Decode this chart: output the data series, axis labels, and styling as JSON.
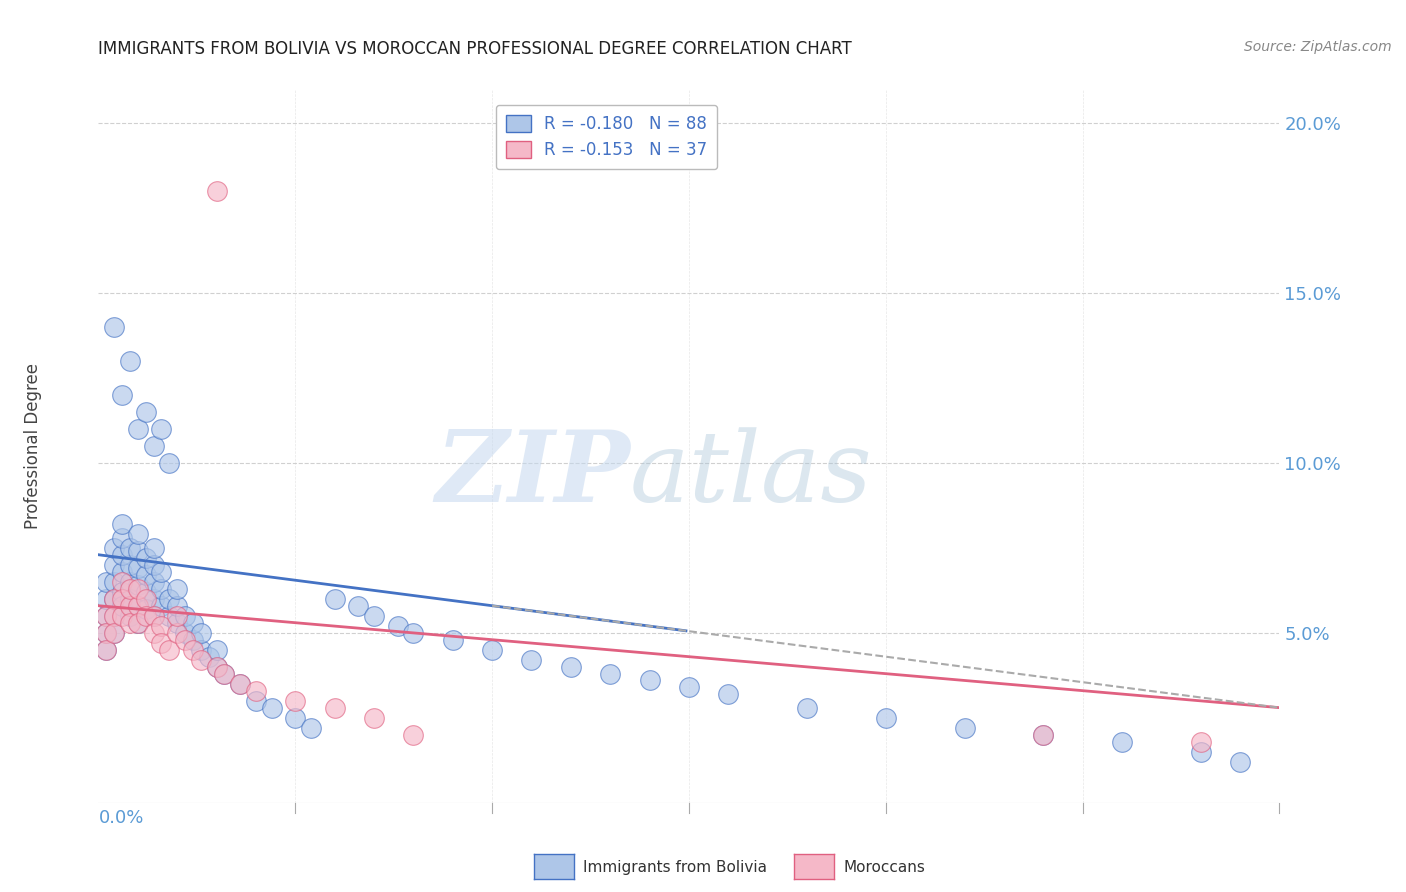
{
  "title": "IMMIGRANTS FROM BOLIVIA VS MOROCCAN PROFESSIONAL DEGREE CORRELATION CHART",
  "source": "Source: ZipAtlas.com",
  "ylabel": "Professional Degree",
  "xmin": 0.0,
  "xmax": 0.15,
  "ymin": 0.0,
  "ymax": 0.21,
  "bolivia_R": -0.18,
  "bolivia_N": 88,
  "morocco_R": -0.153,
  "morocco_N": 37,
  "bolivia_color": "#aec6e8",
  "morocco_color": "#f5b8c8",
  "bolivia_line_color": "#4472c4",
  "morocco_line_color": "#e06080",
  "dashed_line_color": "#aaaaaa",
  "legend_label_bolivia": "Immigrants from Bolivia",
  "legend_label_morocco": "Moroccans",
  "watermark_zip": "ZIP",
  "watermark_atlas": "atlas",
  "background_color": "#ffffff",
  "grid_color": "#d0d0d0",
  "axis_color": "#5b9bd5",
  "tick_label_color": "#5b9bd5",
  "title_color": "#222222",
  "source_color": "#888888",
  "ylabel_color": "#444444",
  "bolivia_intercept": 0.073,
  "bolivia_slope": -0.3,
  "morocco_intercept": 0.058,
  "morocco_slope": -0.2,
  "bolivia_x": [
    0.001,
    0.001,
    0.001,
    0.001,
    0.001,
    0.002,
    0.002,
    0.002,
    0.002,
    0.002,
    0.002,
    0.003,
    0.003,
    0.003,
    0.003,
    0.003,
    0.003,
    0.004,
    0.004,
    0.004,
    0.004,
    0.004,
    0.005,
    0.005,
    0.005,
    0.005,
    0.005,
    0.005,
    0.006,
    0.006,
    0.006,
    0.006,
    0.007,
    0.007,
    0.007,
    0.007,
    0.007,
    0.008,
    0.008,
    0.008,
    0.009,
    0.009,
    0.01,
    0.01,
    0.01,
    0.011,
    0.011,
    0.012,
    0.012,
    0.013,
    0.013,
    0.014,
    0.015,
    0.015,
    0.016,
    0.018,
    0.02,
    0.022,
    0.025,
    0.027,
    0.03,
    0.033,
    0.035,
    0.038,
    0.04,
    0.045,
    0.05,
    0.055,
    0.06,
    0.065,
    0.07,
    0.075,
    0.08,
    0.09,
    0.1,
    0.11,
    0.12,
    0.13,
    0.14,
    0.145,
    0.002,
    0.003,
    0.004,
    0.005,
    0.006,
    0.007,
    0.008,
    0.009
  ],
  "bolivia_y": [
    0.055,
    0.06,
    0.065,
    0.05,
    0.045,
    0.06,
    0.065,
    0.07,
    0.055,
    0.05,
    0.075,
    0.068,
    0.073,
    0.078,
    0.062,
    0.058,
    0.082,
    0.065,
    0.07,
    0.075,
    0.06,
    0.055,
    0.064,
    0.069,
    0.074,
    0.058,
    0.053,
    0.079,
    0.062,
    0.067,
    0.072,
    0.057,
    0.06,
    0.065,
    0.07,
    0.055,
    0.075,
    0.058,
    0.063,
    0.068,
    0.055,
    0.06,
    0.053,
    0.058,
    0.063,
    0.05,
    0.055,
    0.048,
    0.053,
    0.045,
    0.05,
    0.043,
    0.04,
    0.045,
    0.038,
    0.035,
    0.03,
    0.028,
    0.025,
    0.022,
    0.06,
    0.058,
    0.055,
    0.052,
    0.05,
    0.048,
    0.045,
    0.042,
    0.04,
    0.038,
    0.036,
    0.034,
    0.032,
    0.028,
    0.025,
    0.022,
    0.02,
    0.018,
    0.015,
    0.012,
    0.14,
    0.12,
    0.13,
    0.11,
    0.115,
    0.105,
    0.11,
    0.1
  ],
  "morocco_x": [
    0.001,
    0.001,
    0.001,
    0.002,
    0.002,
    0.002,
    0.003,
    0.003,
    0.003,
    0.004,
    0.004,
    0.004,
    0.005,
    0.005,
    0.005,
    0.006,
    0.006,
    0.007,
    0.007,
    0.008,
    0.008,
    0.009,
    0.01,
    0.01,
    0.011,
    0.012,
    0.013,
    0.015,
    0.016,
    0.018,
    0.02,
    0.025,
    0.03,
    0.035,
    0.04,
    0.14,
    0.12
  ],
  "morocco_y": [
    0.055,
    0.05,
    0.045,
    0.06,
    0.055,
    0.05,
    0.065,
    0.06,
    0.055,
    0.058,
    0.053,
    0.063,
    0.058,
    0.053,
    0.063,
    0.06,
    0.055,
    0.055,
    0.05,
    0.052,
    0.047,
    0.045,
    0.05,
    0.055,
    0.048,
    0.045,
    0.042,
    0.04,
    0.038,
    0.035,
    0.033,
    0.03,
    0.028,
    0.025,
    0.02,
    0.018,
    0.02
  ]
}
